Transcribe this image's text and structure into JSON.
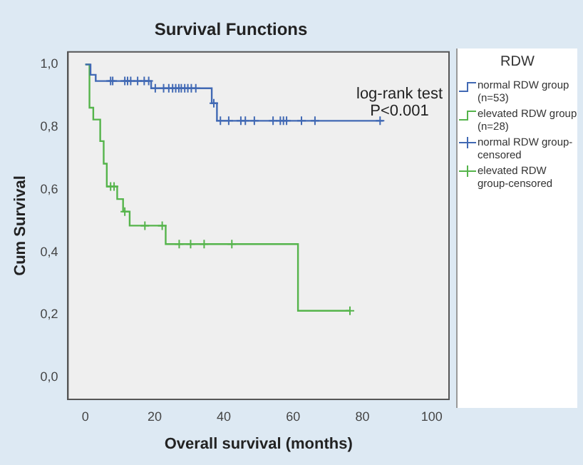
{
  "chart_data": {
    "type": "step",
    "title": "Survival Functions",
    "xlabel": "Overall survival (months)",
    "ylabel": "Cum Survival",
    "legend_title": "RDW",
    "legend": "right",
    "annotations": [
      "log-rank test\nP<0.001"
    ],
    "xlim": [
      -5,
      105
    ],
    "xticks": [
      0,
      20,
      40,
      60,
      80,
      100
    ],
    "ylim": [
      -0.07,
      1.04
    ],
    "yticks": [
      {
        "value": 0,
        "label": "0,0"
      },
      {
        "value": 0.2,
        "label": "0,2"
      },
      {
        "value": 0.4,
        "label": "0,4"
      },
      {
        "value": 0.6,
        "label": "0,6"
      },
      {
        "value": 0.8,
        "label": "0,8"
      },
      {
        "value": 1,
        "label": "1,0"
      }
    ],
    "grid": false,
    "series": [
      {
        "name": "normal RDW group (n=53)",
        "color": "#4169b4",
        "marker": "none",
        "x": [
          0,
          1.5,
          3,
          19,
          36.5,
          38,
          86
        ],
        "values": [
          1,
          0.967,
          0.947,
          0.924,
          0.876,
          0.82,
          0.82
        ]
      },
      {
        "name": "elevated RDW group (n=28)",
        "color": "#55b44b",
        "marker": "none",
        "x": [
          0,
          1.2,
          2.3,
          4.3,
          5.3,
          6.2,
          9.2,
          10.9,
          12.8,
          23.2,
          61.4,
          76.4
        ],
        "values": [
          1,
          0.862,
          0.824,
          0.755,
          0.683,
          0.61,
          0.57,
          0.53,
          0.485,
          0.426,
          0.213,
          0.213
        ]
      },
      {
        "name": "normal RDW group-censored",
        "type": "scatter",
        "color": "#4169b4",
        "marker": "cross",
        "x": [
          7.3,
          7.9,
          11.4,
          12.2,
          13.1,
          15.1,
          17.0,
          18.3,
          20.2,
          22.6,
          24.1,
          25.2,
          26.1,
          27.0,
          27.7,
          28.7,
          29.6,
          30.6,
          31.9,
          37.1,
          39.0,
          41.4,
          44.9,
          46.2,
          48.8,
          54.2,
          56.3,
          57.2,
          58.1,
          62.4,
          66.3,
          85.1
        ],
        "values": [
          0.947,
          0.947,
          0.947,
          0.947,
          0.947,
          0.947,
          0.947,
          0.947,
          0.924,
          0.924,
          0.924,
          0.924,
          0.924,
          0.924,
          0.924,
          0.924,
          0.924,
          0.924,
          0.924,
          0.876,
          0.82,
          0.82,
          0.82,
          0.82,
          0.82,
          0.82,
          0.82,
          0.82,
          0.82,
          0.82,
          0.82,
          0.82
        ]
      },
      {
        "name": "elevated RDW group-censored",
        "type": "scatter",
        "color": "#55b44b",
        "marker": "cross",
        "x": [
          7.3,
          8.3,
          11.4,
          17.2,
          22.2,
          27.1,
          30.4,
          34.3,
          42.3,
          76.4
        ],
        "values": [
          0.61,
          0.61,
          0.53,
          0.485,
          0.485,
          0.426,
          0.426,
          0.426,
          0.426,
          0.213
        ]
      }
    ]
  }
}
